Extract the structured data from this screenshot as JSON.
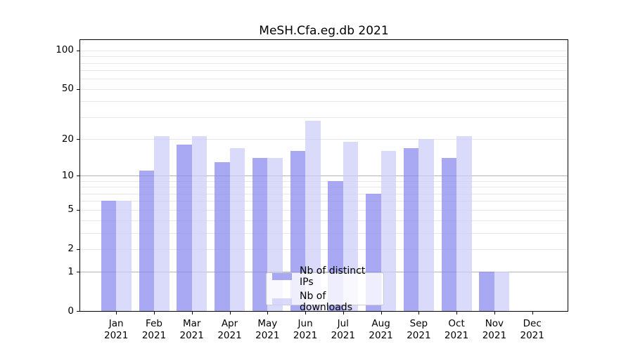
{
  "chart_data": {
    "type": "bar",
    "title": "MeSH.Cfa.eg.db 2021",
    "categories": [
      "Jan",
      "Feb",
      "Mar",
      "Apr",
      "May",
      "Jun",
      "Jul",
      "Aug",
      "Sep",
      "Oct",
      "Nov",
      "Dec"
    ],
    "x_year_label": "2021",
    "series": [
      {
        "name": "Nb of distinct IPs",
        "color": "rgba(136,136,238,0.72)",
        "values": [
          6,
          11,
          18,
          13,
          14,
          16,
          9,
          7,
          17,
          14,
          1,
          0
        ]
      },
      {
        "name": "Nb of downloads",
        "color": "rgba(204,204,248,0.72)",
        "values": [
          6,
          21,
          21,
          17,
          14,
          28,
          19,
          16,
          20,
          21,
          1,
          0
        ]
      }
    ],
    "y_axis": {
      "scale": "log10(value+1)",
      "tick_values": [
        0,
        1,
        2,
        5,
        10,
        20,
        50,
        100
      ],
      "tick_labels": [
        "0",
        "1",
        "2",
        "5",
        "10",
        "20",
        "50",
        "100"
      ],
      "major_gridline_values": [
        1,
        10
      ],
      "minor_gridline_values": [
        2,
        3,
        4,
        5,
        6,
        7,
        8,
        9,
        20,
        30,
        40,
        50,
        60,
        70,
        80,
        90,
        100
      ],
      "ylim": [
        0,
        123
      ]
    },
    "xlabel": "",
    "ylabel": "",
    "grid": true,
    "legend_position": "lower center-right inside plot"
  },
  "colors": {
    "background": "#ffffff",
    "spines": "#000000",
    "major_gridline": "#b4b4b4",
    "minor_gridline": "#e7e7e7",
    "distinct_ips_bar": "rgba(136,136,238,0.72)",
    "downloads_bar": "rgba(204,204,248,0.72)"
  }
}
